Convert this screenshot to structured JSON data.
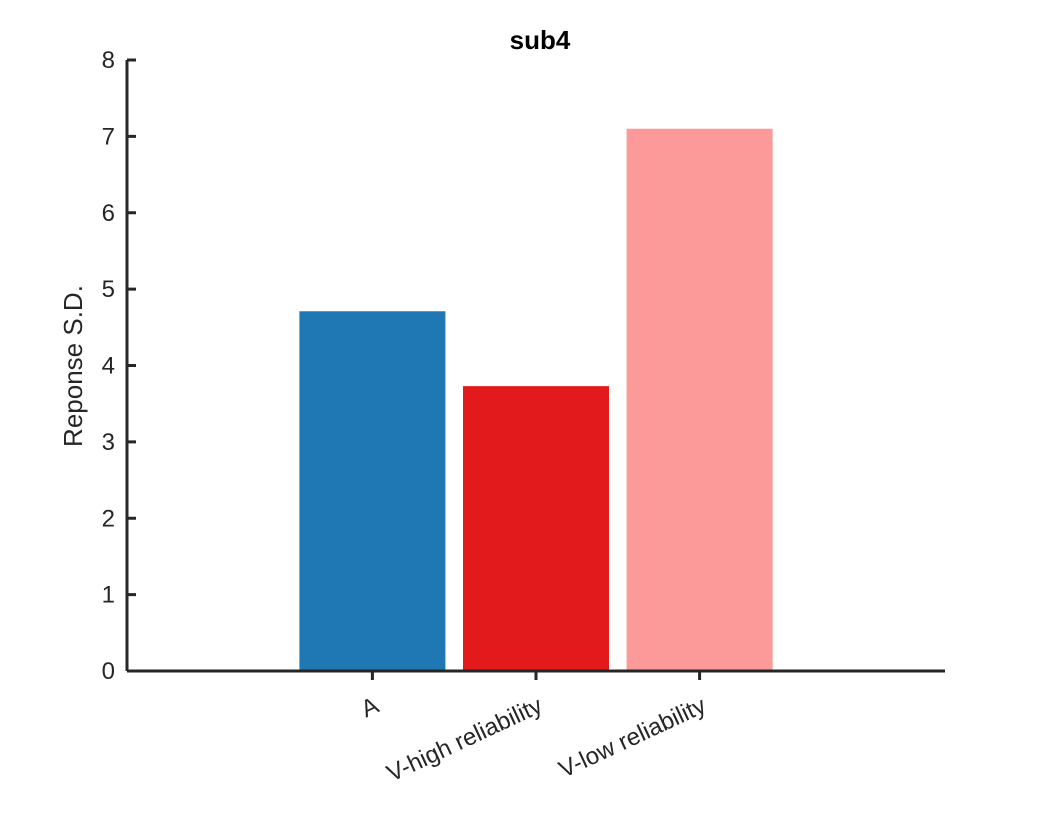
{
  "chart_data": {
    "type": "bar",
    "title": "sub4",
    "xlabel": "",
    "ylabel": "Reponse S.D.",
    "categories": [
      "A",
      "V-high reliability",
      "V-low reliability"
    ],
    "values": [
      4.71,
      3.73,
      7.1
    ],
    "bar_colors": [
      "#1f78b4",
      "#e31a1c",
      "#fb9a99"
    ],
    "ylim": [
      0,
      8
    ],
    "yticks": [
      0,
      1,
      2,
      3,
      4,
      5,
      6,
      7,
      8
    ],
    "ytick_labels": [
      "0",
      "1",
      "2",
      "3",
      "4",
      "5",
      "6",
      "7",
      "8"
    ],
    "xlim": [
      0,
      5
    ],
    "x_positions": [
      1.5,
      2.5,
      3.5
    ],
    "grid": false,
    "legend": null
  }
}
